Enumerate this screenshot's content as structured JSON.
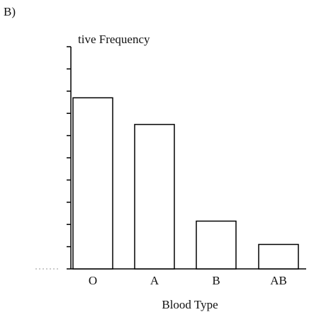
{
  "label": "B)",
  "chart_data": {
    "type": "bar",
    "title": "tive Frequency",
    "x_label": "Blood Type",
    "categories": [
      "O",
      "A",
      "B",
      "AB"
    ],
    "values": [
      7.7,
      6.5,
      2.15,
      1.1
    ],
    "color": "#ffffff",
    "ylim": [
      0,
      10
    ],
    "yticks": [
      0,
      1,
      2,
      3,
      4,
      5,
      6,
      7,
      8,
      9,
      10
    ],
    "grid": false
  }
}
